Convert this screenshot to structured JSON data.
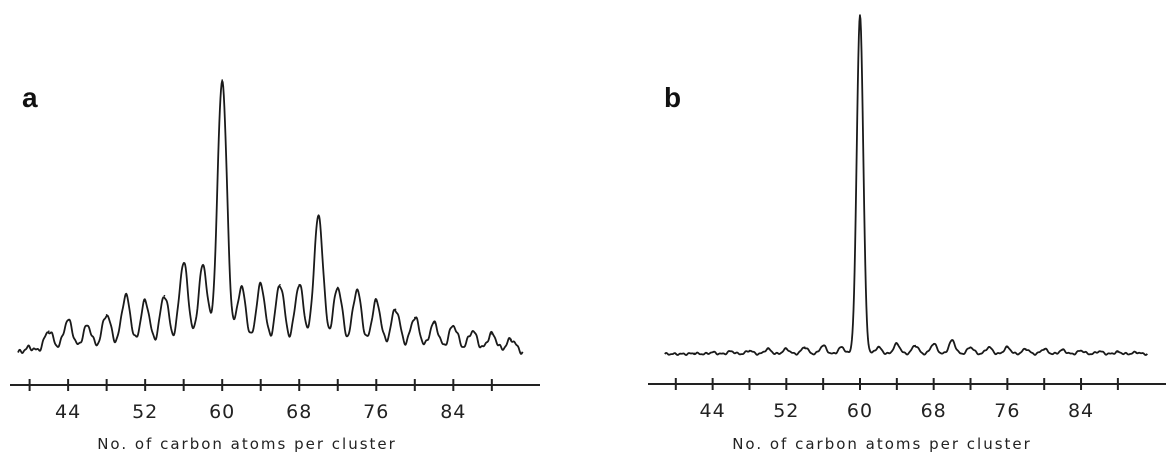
{
  "figure": {
    "chart_data": [
      {
        "type": "line",
        "panel_label": "a",
        "xlabel": "No. of carbon atoms per cluster",
        "ylabel": "",
        "xlim": [
          38,
          94
        ],
        "xticks": [
          40,
          44,
          48,
          52,
          56,
          60,
          64,
          68,
          72,
          76,
          80,
          84,
          88
        ],
        "xticklabels": [
          44,
          52,
          60,
          68,
          76,
          84
        ],
        "ylim": [
          0,
          1
        ],
        "grid": false,
        "series": [
          {
            "x": [
              40,
              42,
              44,
              46,
              48,
              50,
              52,
              54,
              56,
              58,
              60,
              62,
              64,
              66,
              68,
              70,
              72,
              74,
              76,
              78,
              80,
              82,
              84,
              86,
              88,
              90
            ],
            "values": [
              0.02,
              0.08,
              0.12,
              0.1,
              0.14,
              0.21,
              0.19,
              0.21,
              0.33,
              0.32,
              1.0,
              0.24,
              0.25,
              0.25,
              0.25,
              0.5,
              0.24,
              0.23,
              0.19,
              0.16,
              0.13,
              0.11,
              0.1,
              0.08,
              0.07,
              0.05
            ]
          }
        ]
      },
      {
        "type": "line",
        "panel_label": "b",
        "xlabel": "No. of carbon atoms per cluster",
        "ylabel": "",
        "xlim": [
          38,
          94
        ],
        "xticks": [
          40,
          44,
          48,
          52,
          56,
          60,
          64,
          68,
          72,
          76,
          80,
          84,
          88
        ],
        "xticklabels": [
          44,
          52,
          60,
          68,
          76,
          84
        ],
        "ylim": [
          0,
          1
        ],
        "grid": false,
        "series": [
          {
            "x": [
              40,
              42,
              44,
              46,
              48,
              50,
              52,
              54,
              56,
              58,
              60,
              62,
              64,
              66,
              68,
              70,
              72,
              74,
              76,
              78,
              80,
              82,
              84,
              86,
              88,
              90
            ],
            "values": [
              0.0,
              0.002,
              0.005,
              0.008,
              0.01,
              0.015,
              0.015,
              0.02,
              0.025,
              0.02,
              1.0,
              0.02,
              0.03,
              0.025,
              0.03,
              0.04,
              0.02,
              0.02,
              0.02,
              0.015,
              0.015,
              0.012,
              0.01,
              0.008,
              0.006,
              0.005
            ]
          }
        ]
      }
    ]
  }
}
